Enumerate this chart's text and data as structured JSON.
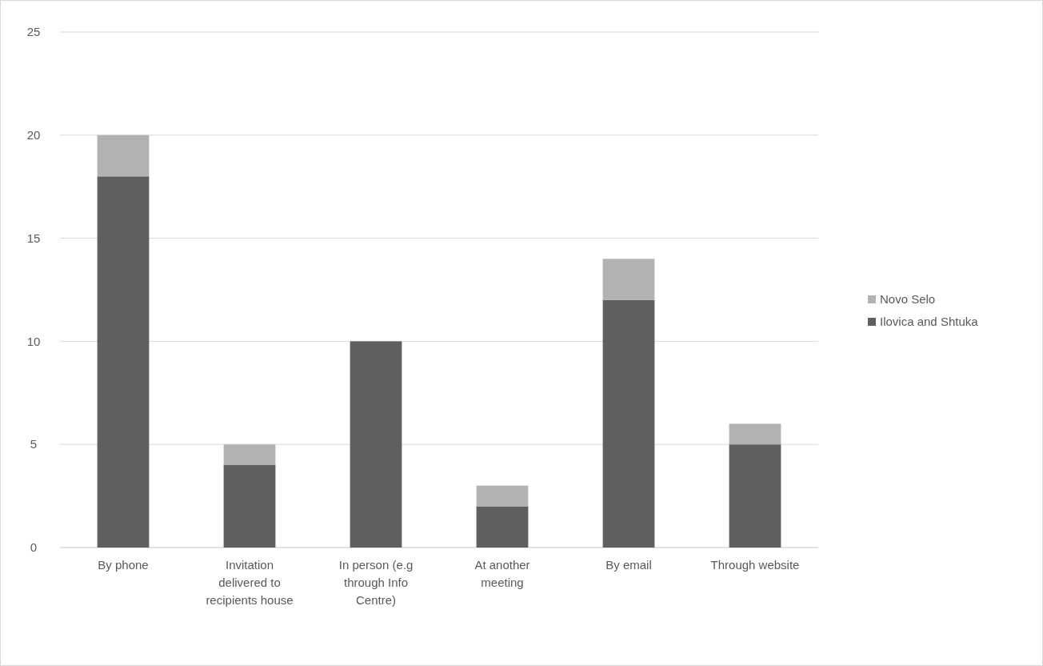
{
  "chart_data": {
    "type": "bar",
    "stacked": true,
    "categories": [
      "By phone",
      "Invitation delivered to recipients house",
      "In person (e.g through Info Centre)",
      "At another meeting",
      "By email",
      "Through website"
    ],
    "series": [
      {
        "name": "Ilovica and Shtuka",
        "color": "#5f5f5f",
        "values": [
          18,
          4,
          10,
          2,
          12,
          5
        ]
      },
      {
        "name": "Novo Selo",
        "color": "#b2b2b2",
        "values": [
          2,
          1,
          0,
          1,
          2,
          1
        ]
      }
    ],
    "ylim": [
      0,
      25
    ],
    "yticks": [
      0,
      5,
      10,
      15,
      20,
      25
    ],
    "grid": "y",
    "legend": "right"
  }
}
